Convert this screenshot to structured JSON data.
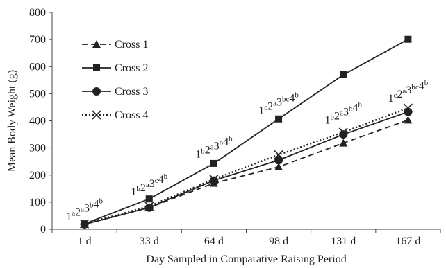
{
  "chart_data": {
    "type": "line",
    "title": "",
    "xlabel": "Day Sampled in Comparative Raising Period",
    "ylabel": "Mean Body Weight (g)",
    "categories": [
      "1 d",
      "33 d",
      "64 d",
      "98 d",
      "131 d",
      "167 d"
    ],
    "ylim": [
      0,
      800
    ],
    "yticks": [
      0,
      100,
      200,
      300,
      400,
      500,
      600,
      700,
      800
    ],
    "ytick_labels": [
      "0",
      "100",
      "200",
      "300",
      "400",
      "500",
      "600",
      "700",
      "800"
    ],
    "grid": false,
    "legend_position": "top-left",
    "series": [
      {
        "name": "Cross 1",
        "values": [
          18,
          80,
          170,
          230,
          318,
          403
        ],
        "line_style": "dashed",
        "marker": "triangle",
        "color": "#222222"
      },
      {
        "name": "Cross 2",
        "values": [
          20,
          112,
          243,
          407,
          570,
          701
        ],
        "line_style": "solid",
        "marker": "square",
        "color": "#222222"
      },
      {
        "name": "Cross 3",
        "values": [
          18,
          80,
          180,
          255,
          350,
          433
        ],
        "line_style": "solid",
        "marker": "circle",
        "color": "#222222"
      },
      {
        "name": "Cross 4",
        "values": [
          20,
          85,
          185,
          275,
          358,
          447
        ],
        "line_style": "dotted",
        "marker": "x",
        "color": "#222222"
      }
    ],
    "annotations": [
      {
        "category_index": 0,
        "y": 35,
        "segments": [
          [
            "1",
            "a"
          ],
          [
            "2",
            "a"
          ],
          [
            "3",
            "b"
          ],
          [
            "4",
            "b"
          ]
        ]
      },
      {
        "category_index": 1,
        "y": 125,
        "segments": [
          [
            "1",
            "b"
          ],
          [
            "2",
            "a"
          ],
          [
            "3",
            "c"
          ],
          [
            "4",
            "b"
          ]
        ]
      },
      {
        "category_index": 2,
        "y": 265,
        "segments": [
          [
            "1",
            "b"
          ],
          [
            "2",
            "a"
          ],
          [
            "3",
            "b"
          ],
          [
            "4",
            "b"
          ]
        ]
      },
      {
        "category_index": 3,
        "y": 425,
        "segments": [
          [
            "1",
            "c"
          ],
          [
            "2",
            "a"
          ],
          [
            "3",
            "bc"
          ],
          [
            "4",
            "b"
          ]
        ]
      },
      {
        "category_index": 4,
        "y": 390,
        "segments": [
          [
            "1",
            "b"
          ],
          [
            "2",
            "a"
          ],
          [
            "3",
            "b"
          ],
          [
            "4",
            "b"
          ]
        ]
      },
      {
        "category_index": 5,
        "y": 470,
        "segments": [
          [
            "1",
            "c"
          ],
          [
            "2",
            "a"
          ],
          [
            "3",
            "bc"
          ],
          [
            "4",
            "b"
          ]
        ]
      }
    ]
  }
}
